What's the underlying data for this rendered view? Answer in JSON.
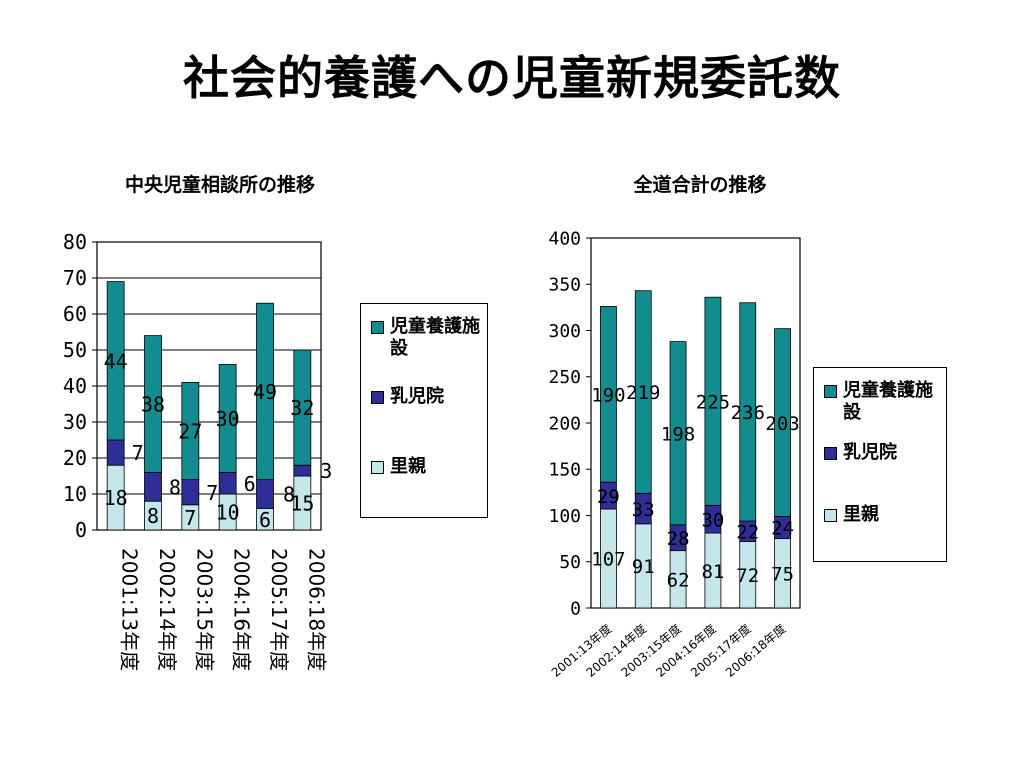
{
  "slide": {
    "title": "社会的養護への児童新規委託数"
  },
  "colors": {
    "shisetsu": "#138c8f",
    "nyujiin": "#2e2e96",
    "satooya": "#c5e7ec"
  },
  "legend": {
    "items": [
      {
        "key": "shisetsu",
        "label": "児童養護施設"
      },
      {
        "key": "nyujiin",
        "label": "乳児院"
      },
      {
        "key": "satooya",
        "label": "里親"
      }
    ]
  },
  "chart_data": [
    {
      "id": "chart1",
      "type": "bar",
      "stacked": true,
      "title": "中央児童相談所の推移",
      "categories": [
        "2001:13年度",
        "2002:14年度",
        "2003:15年度",
        "2004:16年度",
        "2005:17年度",
        "2006:18年度"
      ],
      "series": [
        {
          "key": "satooya",
          "name": "里親",
          "values": [
            18,
            8,
            7,
            10,
            6,
            15
          ]
        },
        {
          "key": "nyujiin",
          "name": "乳児院",
          "values": [
            7,
            8,
            7,
            6,
            8,
            3
          ]
        },
        {
          "key": "shisetsu",
          "name": "児童養護施設",
          "values": [
            44,
            38,
            27,
            30,
            49,
            32
          ]
        }
      ],
      "ylim": [
        0,
        80
      ],
      "yticks": [
        0,
        10,
        20,
        30,
        40,
        50,
        60,
        70,
        80
      ],
      "grid": true,
      "legend": "right"
    },
    {
      "id": "chart2",
      "type": "bar",
      "stacked": true,
      "title": "全道合計の推移",
      "categories": [
        "2001:13年度",
        "2002:14年度",
        "2003:15年度",
        "2004:16年度",
        "2005:17年度",
        "2006:18年度"
      ],
      "series": [
        {
          "key": "satooya",
          "name": "里親",
          "values": [
            107,
            91,
            62,
            81,
            72,
            75
          ]
        },
        {
          "key": "nyujiin",
          "name": "乳児院",
          "values": [
            29,
            33,
            28,
            30,
            22,
            24
          ]
        },
        {
          "key": "shisetsu",
          "name": "児童養護施設",
          "values": [
            190,
            219,
            198,
            225,
            236,
            203
          ]
        }
      ],
      "ylim": [
        0,
        400
      ],
      "yticks": [
        0,
        50,
        100,
        150,
        200,
        250,
        300,
        350,
        400
      ],
      "grid": false,
      "legend": "right"
    }
  ]
}
